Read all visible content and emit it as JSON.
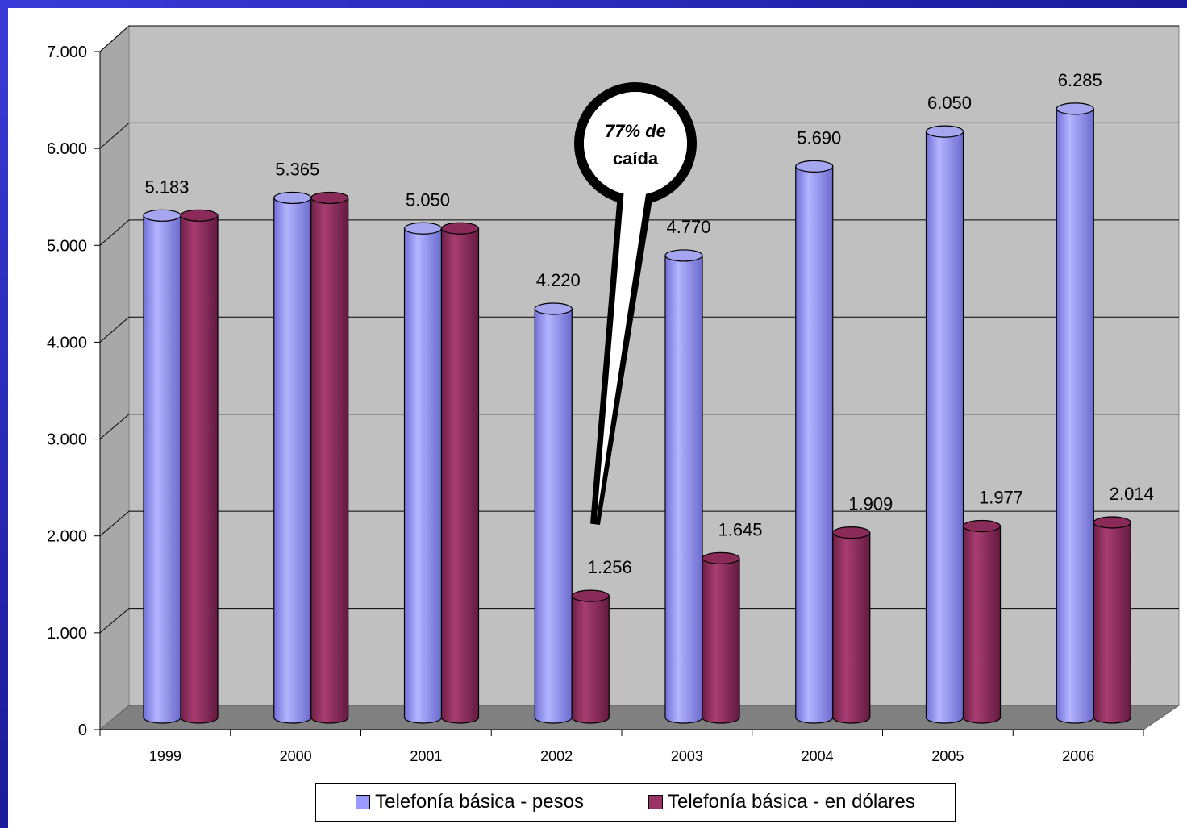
{
  "chart_data": {
    "type": "bar",
    "categories": [
      "1999",
      "2000",
      "2001",
      "2002",
      "2003",
      "2004",
      "2005",
      "2006"
    ],
    "series": [
      {
        "name": "Telefonía básica - pesos",
        "values": [
          5183,
          5365,
          5050,
          4220,
          4770,
          5690,
          6050,
          6285
        ],
        "color": "#9999ff"
      },
      {
        "name": "Telefonía básica - en dólares",
        "values": [
          5183,
          5365,
          5050,
          1256,
          1645,
          1909,
          1977,
          2014
        ],
        "color": "#993366"
      }
    ],
    "data_labels": [
      {
        "category": "1999",
        "series": 0,
        "text": "5.183"
      },
      {
        "category": "2000",
        "series": 0,
        "text": "5.365"
      },
      {
        "category": "2001",
        "series": 0,
        "text": "5.050"
      },
      {
        "category": "2002",
        "series": 0,
        "text": "4.220"
      },
      {
        "category": "2002",
        "series": 1,
        "text": "1.256"
      },
      {
        "category": "2003",
        "series": 0,
        "text": "4.770"
      },
      {
        "category": "2003",
        "series": 1,
        "text": "1.645"
      },
      {
        "category": "2004",
        "series": 0,
        "text": "5.690"
      },
      {
        "category": "2004",
        "series": 1,
        "text": "1.909"
      },
      {
        "category": "2005",
        "series": 0,
        "text": "6.050"
      },
      {
        "category": "2005",
        "series": 1,
        "text": "1.977"
      },
      {
        "category": "2006",
        "series": 0,
        "text": "6.285"
      },
      {
        "category": "2006",
        "series": 1,
        "text": "2.014"
      }
    ],
    "yticks": [
      {
        "value": 0,
        "label": "0"
      },
      {
        "value": 1000,
        "label": "1.000"
      },
      {
        "value": 2000,
        "label": "2.000"
      },
      {
        "value": 3000,
        "label": "3.000"
      },
      {
        "value": 4000,
        "label": "4.000"
      },
      {
        "value": 5000,
        "label": "5.000"
      },
      {
        "value": 6000,
        "label": "6.000"
      },
      {
        "value": 7000,
        "label": "7.000"
      }
    ],
    "ylim": [
      0,
      7000
    ],
    "grid": true,
    "legend_position": "bottom",
    "annotation": {
      "line1": "77% de",
      "line2": "caída",
      "points_to": "2002"
    },
    "wall_color": "#c0c0c0",
    "floor_color": "#808080"
  }
}
